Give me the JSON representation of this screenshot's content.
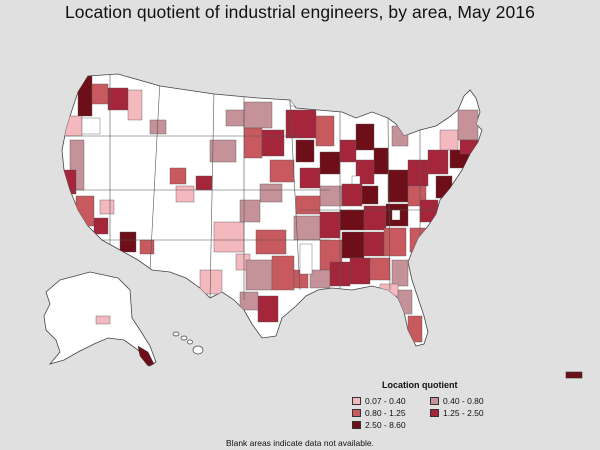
{
  "title": "Location quotient of industrial engineers, by area, May 2016",
  "legend": {
    "title": "Location quotient",
    "items": [
      {
        "label": "0.07 - 0.40",
        "color": "#f4b8bf"
      },
      {
        "label": "0.40 - 0.80",
        "color": "#c49298"
      },
      {
        "label": "0.80 - 1.25",
        "color": "#c8595f"
      },
      {
        "label": "1.25 - 2.50",
        "color": "#a5263a"
      },
      {
        "label": "2.50 - 8.60",
        "color": "#6e0e18"
      }
    ]
  },
  "footnote": "Blank areas indicate data not available.",
  "colors": {
    "background": "#e0e0e0",
    "no_data": "#ffffff",
    "border": "#444444"
  }
}
